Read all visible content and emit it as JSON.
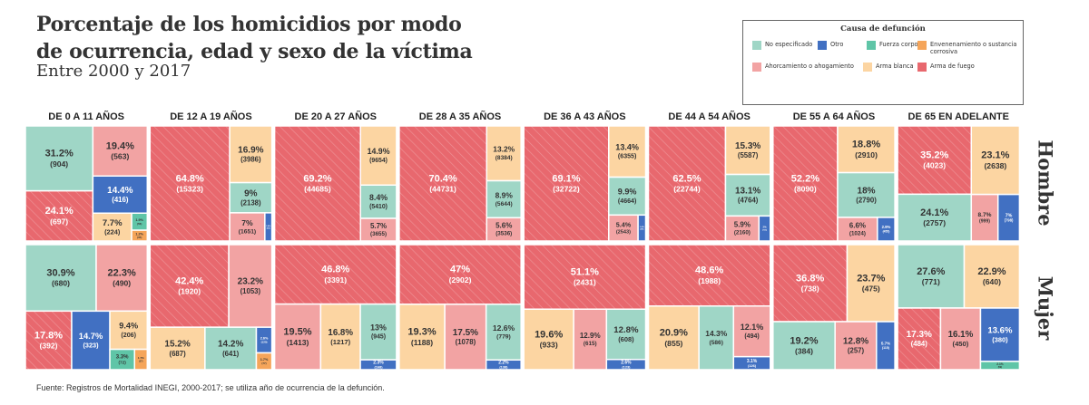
{
  "header": {
    "title_line1": "Porcentaje de los homicidios por modo",
    "title_line2": "de ocurrencia, edad y sexo de la víctima",
    "subtitle": "Entre 2000 y 2017"
  },
  "legend": {
    "title": "Causa de defunción",
    "items": [
      {
        "key": "ne",
        "label": "No especificado"
      },
      {
        "key": "otro",
        "label": "Otro"
      },
      {
        "key": "fc",
        "label": "Fuerza corporal"
      },
      {
        "key": "env",
        "label": "Envenenamiento o sustancia corrosiva"
      },
      {
        "key": "ah",
        "label": "Ahorcamiento o ahogamiento"
      },
      {
        "key": "ab",
        "label": "Arma blanca"
      },
      {
        "key": "af",
        "label": "Arma de fuego"
      }
    ]
  },
  "colors": {
    "af": "#e8686e",
    "ah": "#f2a3a3",
    "ab": "#fcd5a2",
    "ne": "#9fd6c6",
    "otro": "#4170c2",
    "fc": "#5fc5a7",
    "env": "#f5a55a"
  },
  "source": "Fuente: Registros de Mortalidad INEGI, 2000-2017; se utiliza año de ocurrencia de la defunción.",
  "chart_data": {
    "type": "treemap",
    "row_labels": [
      "Hombre",
      "Mujer"
    ],
    "groups": [
      {
        "label": "DE 0 A 11 AÑOS",
        "hombre": [
          {
            "c": "af",
            "p": "24.1%",
            "n": "(697)"
          },
          {
            "c": "ne",
            "p": "31.2%",
            "n": "(904)"
          },
          {
            "c": "ab",
            "p": "7.7%",
            "n": "(224)"
          },
          {
            "c": "fc",
            "p": "1.9%",
            "n": "(56)"
          },
          {
            "c": "env",
            "p": "1.2%",
            "n": "(35)"
          },
          {
            "c": "otro",
            "p": "14.4%",
            "n": "(416)"
          },
          {
            "c": "ah",
            "p": "19.4%",
            "n": "(563)"
          }
        ],
        "mujer": [
          {
            "c": "ah",
            "p": "22.3%",
            "n": "(490)"
          },
          {
            "c": "ne",
            "p": "30.9%",
            "n": "(680)"
          },
          {
            "c": "ab",
            "p": "9.4%",
            "n": "(206)"
          },
          {
            "c": "env",
            "p": "1.7%",
            "n": "(37)"
          },
          {
            "c": "fc",
            "p": "3.3%",
            "n": "(72)"
          },
          {
            "c": "otro",
            "p": "14.7%",
            "n": "(323)"
          },
          {
            "c": "af",
            "p": "17.8%",
            "n": "(392)"
          }
        ]
      },
      {
        "label": "DE 12 A 19 AÑOS",
        "hombre": [
          {
            "c": "af",
            "p": "64.8%",
            "n": "(15323)"
          },
          {
            "c": "ah",
            "p": "7%",
            "n": "(1651)"
          },
          {
            "c": "otro",
            "p": "1.4%",
            "n": "(333)"
          },
          {
            "c": "ne",
            "p": "9%",
            "n": "(2138)"
          },
          {
            "c": "ab",
            "p": "16.9%",
            "n": "(3986)"
          }
        ],
        "mujer": [
          {
            "c": "ah",
            "p": "23.2%",
            "n": "(1053)"
          },
          {
            "c": "af",
            "p": "42.4%",
            "n": "(1920)"
          },
          {
            "c": "otro",
            "p": "2.6%",
            "n": "(120)"
          },
          {
            "c": "env",
            "p": "1.7%",
            "n": "(77)"
          },
          {
            "c": "ne",
            "p": "14.2%",
            "n": "(641)"
          },
          {
            "c": "ab",
            "p": "15.2%",
            "n": "(687)"
          }
        ]
      },
      {
        "label": "DE 20 A 27 AÑOS",
        "hombre": [
          {
            "c": "af",
            "p": "69.2%",
            "n": "(44685)"
          },
          {
            "c": "ah",
            "p": "5.7%",
            "n": "(3655)"
          },
          {
            "c": "ne",
            "p": "8.4%",
            "n": "(5410)"
          },
          {
            "c": "ab",
            "p": "14.9%",
            "n": "(9654)"
          }
        ],
        "mujer": [
          {
            "c": "af",
            "p": "46.8%",
            "n": "(3391)"
          },
          {
            "c": "ne",
            "p": "13%",
            "n": "(945)"
          },
          {
            "c": "otro",
            "p": "2.3%",
            "n": "(168)"
          },
          {
            "c": "ab",
            "p": "16.8%",
            "n": "(1217)"
          },
          {
            "c": "ah",
            "p": "19.5%",
            "n": "(1413)"
          }
        ]
      },
      {
        "label": "DE 28 A 35 AÑOS",
        "hombre": [
          {
            "c": "af",
            "p": "70.4%",
            "n": "(44731)"
          },
          {
            "c": "ah",
            "p": "5.6%",
            "n": "(3536)"
          },
          {
            "c": "ne",
            "p": "8.9%",
            "n": "(5644)"
          },
          {
            "c": "ab",
            "p": "13.2%",
            "n": "(8384)"
          }
        ],
        "mujer": [
          {
            "c": "af",
            "p": "47%",
            "n": "(2902)"
          },
          {
            "c": "ne",
            "p": "12.6%",
            "n": "(779)"
          },
          {
            "c": "otro",
            "p": "2.2%",
            "n": "(138)"
          },
          {
            "c": "ah",
            "p": "17.5%",
            "n": "(1078)"
          },
          {
            "c": "ab",
            "p": "19.3%",
            "n": "(1188)"
          }
        ]
      },
      {
        "label": "DE 36 A 43 AÑOS",
        "hombre": [
          {
            "c": "af",
            "p": "69.1%",
            "n": "(32722)"
          },
          {
            "c": "ah",
            "p": "5.4%",
            "n": "(2543)"
          },
          {
            "c": "otro",
            "p": "1.4%",
            "n": "(680)"
          },
          {
            "c": "ne",
            "p": "9.9%",
            "n": "(4664)"
          },
          {
            "c": "ab",
            "p": "13.4%",
            "n": "(6355)"
          }
        ],
        "mujer": [
          {
            "c": "af",
            "p": "51.1%",
            "n": "(2431)"
          },
          {
            "c": "ne",
            "p": "12.8%",
            "n": "(608)"
          },
          {
            "c": "otro",
            "p": "2.6%",
            "n": "(123)"
          },
          {
            "c": "ah",
            "p": "12.9%",
            "n": "(615)"
          },
          {
            "c": "ab",
            "p": "19.6%",
            "n": "(933)"
          }
        ]
      },
      {
        "label": "DE 44 A 54 AÑOS",
        "hombre": [
          {
            "c": "af",
            "p": "62.5%",
            "n": "(22744)"
          },
          {
            "c": "ah",
            "p": "5.9%",
            "n": "(2160)"
          },
          {
            "c": "otro",
            "p": "2%",
            "n": "(715)"
          },
          {
            "c": "ne",
            "p": "13.1%",
            "n": "(4764)"
          },
          {
            "c": "ab",
            "p": "15.3%",
            "n": "(5587)"
          }
        ],
        "mujer": [
          {
            "c": "af",
            "p": "48.6%",
            "n": "(1988)"
          },
          {
            "c": "ah",
            "p": "12.1%",
            "n": "(494)"
          },
          {
            "c": "otro",
            "p": "3.1%",
            "n": "(126)"
          },
          {
            "c": "ne",
            "p": "14.3%",
            "n": "(586)"
          },
          {
            "c": "ab",
            "p": "20.9%",
            "n": "(855)"
          }
        ]
      },
      {
        "label": "DE 55 A 64 AÑOS",
        "hombre": [
          {
            "c": "af",
            "p": "52.2%",
            "n": "(8090)"
          },
          {
            "c": "ah",
            "p": "6.6%",
            "n": "(1024)"
          },
          {
            "c": "otro",
            "p": "2.9%",
            "n": "(455)"
          },
          {
            "c": "ne",
            "p": "18%",
            "n": "(2790)"
          },
          {
            "c": "ab",
            "p": "18.8%",
            "n": "(2910)"
          }
        ],
        "mujer": [
          {
            "c": "ab",
            "p": "23.7%",
            "n": "(475)"
          },
          {
            "c": "af",
            "p": "36.8%",
            "n": "(738)"
          },
          {
            "c": "otro",
            "p": "5.7%",
            "n": "(115)"
          },
          {
            "c": "ah",
            "p": "12.8%",
            "n": "(257)"
          },
          {
            "c": "ne",
            "p": "19.2%",
            "n": "(384)"
          }
        ]
      },
      {
        "label": "DE 65 EN ADELANTE",
        "hombre": [
          {
            "c": "ne",
            "p": "24.1%",
            "n": "(2757)"
          },
          {
            "c": "af",
            "p": "35.2%",
            "n": "(4023)"
          },
          {
            "c": "otro",
            "p": "7%",
            "n": "(798)"
          },
          {
            "c": "ah",
            "p": "8.7%",
            "n": "(999)"
          },
          {
            "c": "ab",
            "p": "23.1%",
            "n": "(2638)"
          }
        ],
        "mujer": [
          {
            "c": "ab",
            "p": "22.9%",
            "n": "(640)"
          },
          {
            "c": "ne",
            "p": "27.6%",
            "n": "(771)"
          },
          {
            "c": "otro",
            "p": "13.6%",
            "n": "(380)"
          },
          {
            "c": "fc",
            "p": "2.1%",
            "n": "(59)"
          },
          {
            "c": "ah",
            "p": "16.1%",
            "n": "(450)"
          },
          {
            "c": "af",
            "p": "17.3%",
            "n": "(484)"
          }
        ]
      }
    ]
  }
}
